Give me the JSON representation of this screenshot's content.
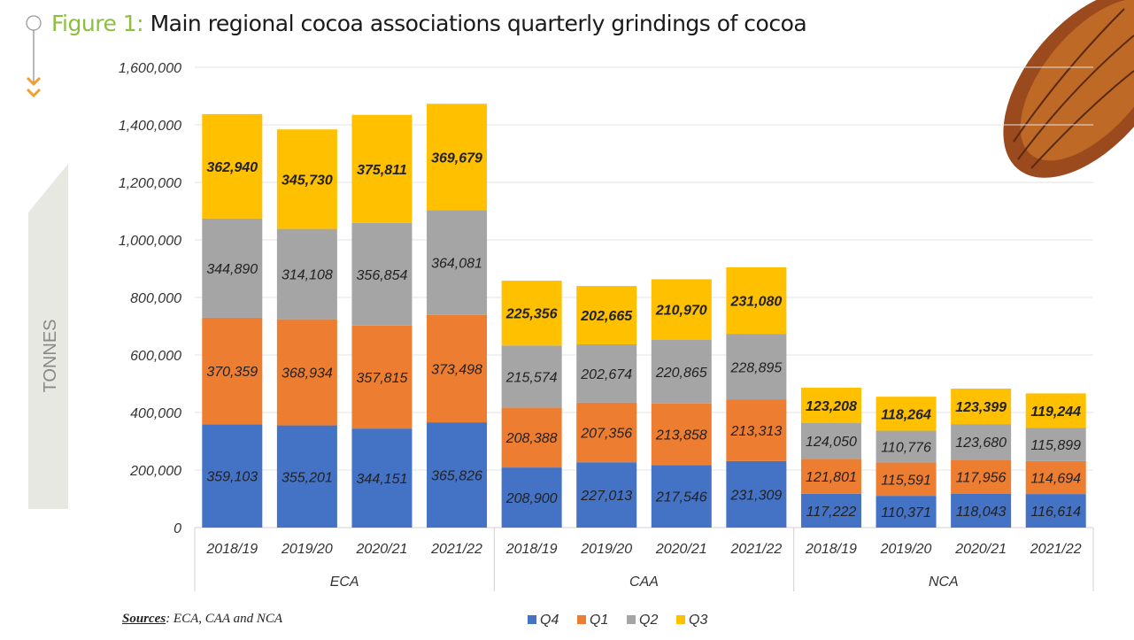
{
  "figure_label": "Figure 1:",
  "title": "Main regional cocoa associations quarterly grindings of cocoa",
  "sources_label": "Sources",
  "sources_text": ": ECA, CAA and NCA",
  "chart_data": {
    "type": "bar",
    "stacked": true,
    "title": "Main regional cocoa associations quarterly grindings of cocoa",
    "ylabel": "TONNES",
    "ylim": [
      0,
      1600000
    ],
    "yticks": [
      0,
      200000,
      400000,
      600000,
      800000,
      1000000,
      1200000,
      1400000,
      1600000
    ],
    "ytick_labels": [
      "0",
      "200,000",
      "400,000",
      "600,000",
      "800,000",
      "1,000,000",
      "1,200,000",
      "1,400,000",
      "1,600,000"
    ],
    "grid": true,
    "legend_placement": "bottom",
    "groups": [
      {
        "name": "ECA",
        "categories": [
          "2018/19",
          "2019/20",
          "2020/21",
          "2021/22"
        ]
      },
      {
        "name": "CAA",
        "categories": [
          "2018/19",
          "2019/20",
          "2020/21",
          "2021/22"
        ]
      },
      {
        "name": "NCA",
        "categories": [
          "2018/19",
          "2019/20",
          "2020/21",
          "2021/22"
        ]
      }
    ],
    "series": [
      {
        "name": "Q4",
        "color": "#4472c4",
        "values": [
          359103,
          355201,
          344151,
          365826,
          208900,
          227013,
          217546,
          231309,
          117222,
          110371,
          118043,
          116614
        ]
      },
      {
        "name": "Q1",
        "color": "#ed7d31",
        "values": [
          370359,
          368934,
          357815,
          373498,
          208388,
          207356,
          213858,
          213313,
          121801,
          115591,
          117956,
          114694
        ]
      },
      {
        "name": "Q2",
        "color": "#a5a5a5",
        "values": [
          344890,
          314108,
          356854,
          364081,
          215574,
          202674,
          220865,
          228895,
          124050,
          110776,
          123680,
          115899
        ]
      },
      {
        "name": "Q3",
        "color": "#ffc000",
        "values": [
          362940,
          345730,
          375811,
          369679,
          225356,
          202665,
          210970,
          231080,
          123208,
          118264,
          123399,
          119244
        ]
      }
    ]
  },
  "colors": {
    "figure_label": "#8cbf3f",
    "arrow": "#f0a030",
    "side_panel": "#e8e8e3"
  }
}
